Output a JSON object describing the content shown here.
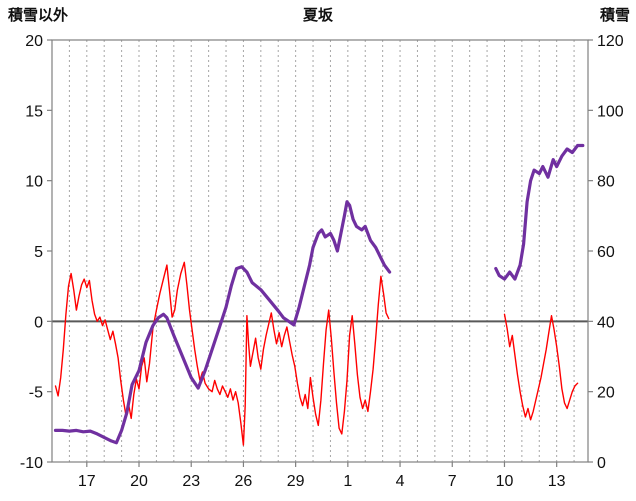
{
  "header": {
    "left_axis_title": "積雪以外",
    "title": "夏坂",
    "right_axis_title": "積雪"
  },
  "chart_data": {
    "type": "line",
    "title": "夏坂",
    "grid": "vertical-dashed-daily",
    "legend": "none",
    "colors": {
      "red_series": "#ff0000",
      "purple_series": "#7030a0",
      "zero_line": "#595959",
      "frame": "#808080",
      "gridline": "#a6a6a6"
    },
    "left_axis": {
      "label": "積雪以外",
      "min": -10,
      "max": 20,
      "ticks": [
        20,
        15,
        10,
        5,
        0,
        -5,
        -10
      ]
    },
    "right_axis": {
      "label": "積雪",
      "min": 0,
      "max": 120,
      "ticks": [
        120,
        100,
        80,
        60,
        40,
        20,
        0
      ]
    },
    "x_axis": {
      "min": 15,
      "max": 45.8,
      "minor_grid_step": 1,
      "tick_positions": [
        17,
        20,
        23,
        26,
        29,
        32,
        35,
        38,
        41,
        44
      ],
      "tick_labels": [
        "17",
        "20",
        "23",
        "26",
        "29",
        "1",
        "4",
        "7",
        "10",
        "13"
      ]
    },
    "zero_line": {
      "axis": "left",
      "value": 0
    },
    "series": [
      {
        "id": "series-red",
        "axis": "left",
        "color": "#ff0000",
        "width": 1.4,
        "segments": [
          [
            [
              15.2,
              -4.6
            ],
            [
              15.35,
              -5.3
            ],
            [
              15.5,
              -4.0
            ],
            [
              15.65,
              -2.0
            ],
            [
              15.8,
              0.5
            ],
            [
              15.95,
              2.5
            ],
            [
              16.1,
              3.4
            ],
            [
              16.25,
              2.2
            ],
            [
              16.4,
              0.8
            ],
            [
              16.55,
              1.8
            ],
            [
              16.7,
              2.6
            ],
            [
              16.85,
              3.0
            ],
            [
              17.0,
              2.4
            ],
            [
              17.15,
              2.9
            ],
            [
              17.3,
              1.5
            ],
            [
              17.45,
              0.5
            ],
            [
              17.6,
              0.0
            ],
            [
              17.75,
              0.3
            ],
            [
              17.9,
              -0.3
            ],
            [
              18.05,
              0.1
            ],
            [
              18.2,
              -0.6
            ],
            [
              18.35,
              -1.3
            ],
            [
              18.5,
              -0.7
            ],
            [
              18.65,
              -1.6
            ],
            [
              18.8,
              -2.6
            ],
            [
              18.95,
              -4.2
            ],
            [
              19.1,
              -5.6
            ],
            [
              19.25,
              -6.7
            ],
            [
              19.4,
              -5.9
            ],
            [
              19.55,
              -6.9
            ],
            [
              19.7,
              -5.2
            ],
            [
              19.85,
              -4.1
            ],
            [
              20.0,
              -4.8
            ],
            [
              20.15,
              -3.2
            ],
            [
              20.3,
              -2.6
            ],
            [
              20.45,
              -4.3
            ],
            [
              20.6,
              -3.0
            ],
            [
              20.8,
              -0.5
            ],
            [
              21.0,
              0.8
            ],
            [
              21.2,
              2.0
            ],
            [
              21.4,
              3.0
            ],
            [
              21.6,
              4.0
            ],
            [
              21.75,
              2.2
            ],
            [
              21.9,
              0.3
            ],
            [
              22.05,
              0.8
            ],
            [
              22.2,
              2.2
            ],
            [
              22.4,
              3.4
            ],
            [
              22.6,
              4.2
            ],
            [
              22.75,
              2.6
            ],
            [
              22.9,
              0.8
            ],
            [
              23.05,
              -0.6
            ],
            [
              23.2,
              -2.0
            ],
            [
              23.35,
              -3.2
            ],
            [
              23.5,
              -4.2
            ],
            [
              23.65,
              -3.6
            ],
            [
              23.8,
              -4.4
            ],
            [
              24.0,
              -4.8
            ],
            [
              24.2,
              -5.0
            ],
            [
              24.35,
              -4.2
            ],
            [
              24.5,
              -4.8
            ],
            [
              24.65,
              -5.2
            ],
            [
              24.8,
              -4.6
            ],
            [
              24.95,
              -5.0
            ],
            [
              25.1,
              -5.4
            ],
            [
              25.25,
              -4.8
            ],
            [
              25.4,
              -5.6
            ],
            [
              25.55,
              -5.0
            ],
            [
              25.7,
              -5.8
            ],
            [
              25.85,
              -7.2
            ],
            [
              26.0,
              -8.8
            ],
            [
              26.1,
              -6.0
            ],
            [
              26.2,
              0.4
            ],
            [
              26.3,
              -1.6
            ],
            [
              26.4,
              -3.2
            ],
            [
              26.55,
              -2.2
            ],
            [
              26.7,
              -1.2
            ],
            [
              26.85,
              -2.6
            ],
            [
              27.0,
              -3.4
            ],
            [
              27.15,
              -2.0
            ],
            [
              27.3,
              -1.0
            ],
            [
              27.45,
              -0.2
            ],
            [
              27.6,
              0.6
            ],
            [
              27.75,
              -0.6
            ],
            [
              27.9,
              -1.6
            ],
            [
              28.05,
              -0.8
            ],
            [
              28.2,
              -1.8
            ],
            [
              28.35,
              -1.0
            ],
            [
              28.5,
              -0.4
            ],
            [
              28.65,
              -1.4
            ],
            [
              28.8,
              -2.4
            ],
            [
              28.95,
              -3.2
            ],
            [
              29.1,
              -4.4
            ],
            [
              29.25,
              -5.4
            ],
            [
              29.4,
              -6.0
            ],
            [
              29.55,
              -5.2
            ],
            [
              29.7,
              -6.2
            ],
            [
              29.85,
              -4.0
            ],
            [
              30.0,
              -5.4
            ],
            [
              30.15,
              -6.6
            ],
            [
              30.3,
              -7.4
            ],
            [
              30.45,
              -5.6
            ],
            [
              30.6,
              -3.0
            ],
            [
              30.75,
              -0.6
            ],
            [
              30.9,
              0.8
            ],
            [
              31.05,
              -1.2
            ],
            [
              31.2,
              -3.6
            ],
            [
              31.35,
              -5.8
            ],
            [
              31.5,
              -7.6
            ],
            [
              31.65,
              -8.0
            ],
            [
              31.8,
              -6.4
            ],
            [
              31.95,
              -4.2
            ],
            [
              32.1,
              -1.0
            ],
            [
              32.25,
              0.4
            ],
            [
              32.4,
              -1.6
            ],
            [
              32.55,
              -3.8
            ],
            [
              32.7,
              -5.4
            ],
            [
              32.85,
              -6.2
            ],
            [
              33.0,
              -5.6
            ],
            [
              33.15,
              -6.4
            ],
            [
              33.3,
              -5.0
            ],
            [
              33.45,
              -3.4
            ],
            [
              33.6,
              -1.2
            ],
            [
              33.75,
              1.2
            ],
            [
              33.9,
              3.2
            ],
            [
              34.05,
              2.0
            ],
            [
              34.2,
              0.6
            ],
            [
              34.35,
              0.2
            ]
          ],
          [
            [
              41.0,
              0.5
            ],
            [
              41.15,
              -0.5
            ],
            [
              41.3,
              -1.8
            ],
            [
              41.45,
              -1.0
            ],
            [
              41.6,
              -2.4
            ],
            [
              41.75,
              -3.8
            ],
            [
              41.9,
              -5.0
            ],
            [
              42.05,
              -6.0
            ],
            [
              42.2,
              -6.8
            ],
            [
              42.35,
              -6.2
            ],
            [
              42.5,
              -7.0
            ],
            [
              42.65,
              -6.4
            ],
            [
              42.8,
              -5.6
            ],
            [
              42.95,
              -4.8
            ],
            [
              43.1,
              -4.0
            ],
            [
              43.25,
              -3.0
            ],
            [
              43.4,
              -2.0
            ],
            [
              43.55,
              -0.8
            ],
            [
              43.7,
              0.4
            ],
            [
              43.85,
              -0.6
            ],
            [
              44.0,
              -1.8
            ],
            [
              44.15,
              -3.2
            ],
            [
              44.3,
              -4.8
            ],
            [
              44.45,
              -5.8
            ],
            [
              44.6,
              -6.2
            ],
            [
              44.75,
              -5.6
            ],
            [
              44.9,
              -5.0
            ],
            [
              45.05,
              -4.6
            ],
            [
              45.2,
              -4.4
            ]
          ]
        ]
      },
      {
        "id": "series-purple",
        "axis": "right",
        "color": "#7030a0",
        "width": 3.2,
        "segments": [
          [
            [
              15.2,
              9
            ],
            [
              15.6,
              9
            ],
            [
              16.0,
              8.8
            ],
            [
              16.4,
              9
            ],
            [
              16.8,
              8.6
            ],
            [
              17.2,
              8.8
            ],
            [
              17.6,
              8
            ],
            [
              18.0,
              7
            ],
            [
              18.4,
              6
            ],
            [
              18.7,
              5.5
            ],
            [
              19.0,
              9
            ],
            [
              19.3,
              14
            ],
            [
              19.6,
              22
            ],
            [
              20.0,
              26
            ],
            [
              20.4,
              34
            ],
            [
              20.8,
              38.8
            ],
            [
              21.1,
              41
            ],
            [
              21.4,
              42
            ],
            [
              21.6,
              41
            ],
            [
              22.0,
              36
            ],
            [
              22.5,
              30
            ],
            [
              23.0,
              24
            ],
            [
              23.4,
              21
            ],
            [
              23.8,
              26
            ],
            [
              24.2,
              32
            ],
            [
              24.6,
              38
            ],
            [
              25.0,
              44
            ],
            [
              25.3,
              50
            ],
            [
              25.6,
              55
            ],
            [
              25.9,
              55.5
            ],
            [
              26.2,
              54
            ],
            [
              26.5,
              51
            ],
            [
              27.0,
              49
            ],
            [
              27.5,
              46
            ],
            [
              28.0,
              43
            ],
            [
              28.3,
              41
            ],
            [
              28.6,
              40
            ],
            [
              28.9,
              39
            ],
            [
              29.2,
              44
            ],
            [
              29.5,
              50
            ],
            [
              29.8,
              56
            ],
            [
              30.0,
              61
            ],
            [
              30.3,
              65
            ],
            [
              30.5,
              66
            ],
            [
              30.7,
              64
            ],
            [
              31.0,
              65
            ],
            [
              31.2,
              63
            ],
            [
              31.4,
              60
            ],
            [
              31.6,
              65
            ],
            [
              31.8,
              70
            ],
            [
              31.95,
              74
            ],
            [
              32.1,
              73
            ],
            [
              32.3,
              69
            ],
            [
              32.5,
              67
            ],
            [
              32.8,
              66
            ],
            [
              33.0,
              67
            ],
            [
              33.3,
              63
            ],
            [
              33.6,
              61
            ],
            [
              33.9,
              58
            ],
            [
              34.1,
              56
            ],
            [
              34.4,
              54
            ]
          ],
          [
            [
              40.5,
              55
            ],
            [
              40.7,
              53
            ],
            [
              41.0,
              52
            ],
            [
              41.3,
              54
            ],
            [
              41.6,
              52
            ],
            [
              41.9,
              56
            ],
            [
              42.1,
              62
            ],
            [
              42.3,
              74
            ],
            [
              42.5,
              80
            ],
            [
              42.7,
              83
            ],
            [
              43.0,
              82
            ],
            [
              43.2,
              84
            ],
            [
              43.5,
              81
            ],
            [
              43.8,
              86
            ],
            [
              44.0,
              84
            ],
            [
              44.3,
              87
            ],
            [
              44.6,
              89
            ],
            [
              44.9,
              88
            ],
            [
              45.2,
              90
            ],
            [
              45.5,
              90
            ]
          ]
        ]
      }
    ]
  }
}
